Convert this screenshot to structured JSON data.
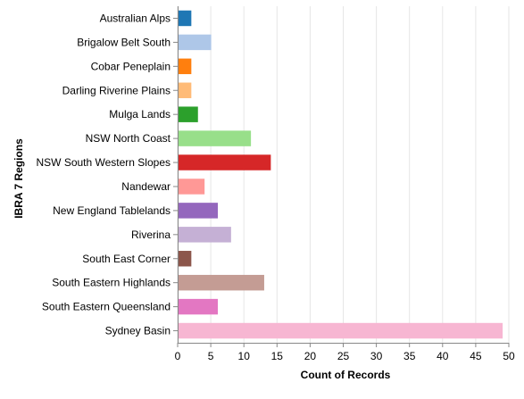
{
  "chart_data": {
    "type": "bar",
    "orientation": "horizontal",
    "title": "",
    "xlabel": "Count of Records",
    "ylabel": "IBRA 7 Regions",
    "xlim": [
      0,
      50
    ],
    "x_ticks": [
      0,
      5,
      10,
      15,
      20,
      25,
      30,
      35,
      40,
      45,
      50
    ],
    "grid": "vertical",
    "categories": [
      "Australian Alps",
      "Brigalow Belt South",
      "Cobar Peneplain",
      "Darling Riverine Plains",
      "Mulga Lands",
      "NSW North Coast",
      "NSW South Western Slopes",
      "Nandewar",
      "New England Tablelands",
      "Riverina",
      "South East Corner",
      "South Eastern Highlands",
      "South Eastern Queensland",
      "Sydney Basin"
    ],
    "values": [
      2,
      5,
      2,
      2,
      3,
      11,
      14,
      4,
      6,
      8,
      2,
      13,
      6,
      49
    ],
    "colors": [
      "#1f77b4",
      "#aec7e8",
      "#ff7f0e",
      "#ffbb78",
      "#2ca02c",
      "#98df8a",
      "#d62728",
      "#ff9896",
      "#9467bd",
      "#c5b0d5",
      "#8c564b",
      "#c49c94",
      "#e377c2",
      "#f7b6d2"
    ]
  }
}
